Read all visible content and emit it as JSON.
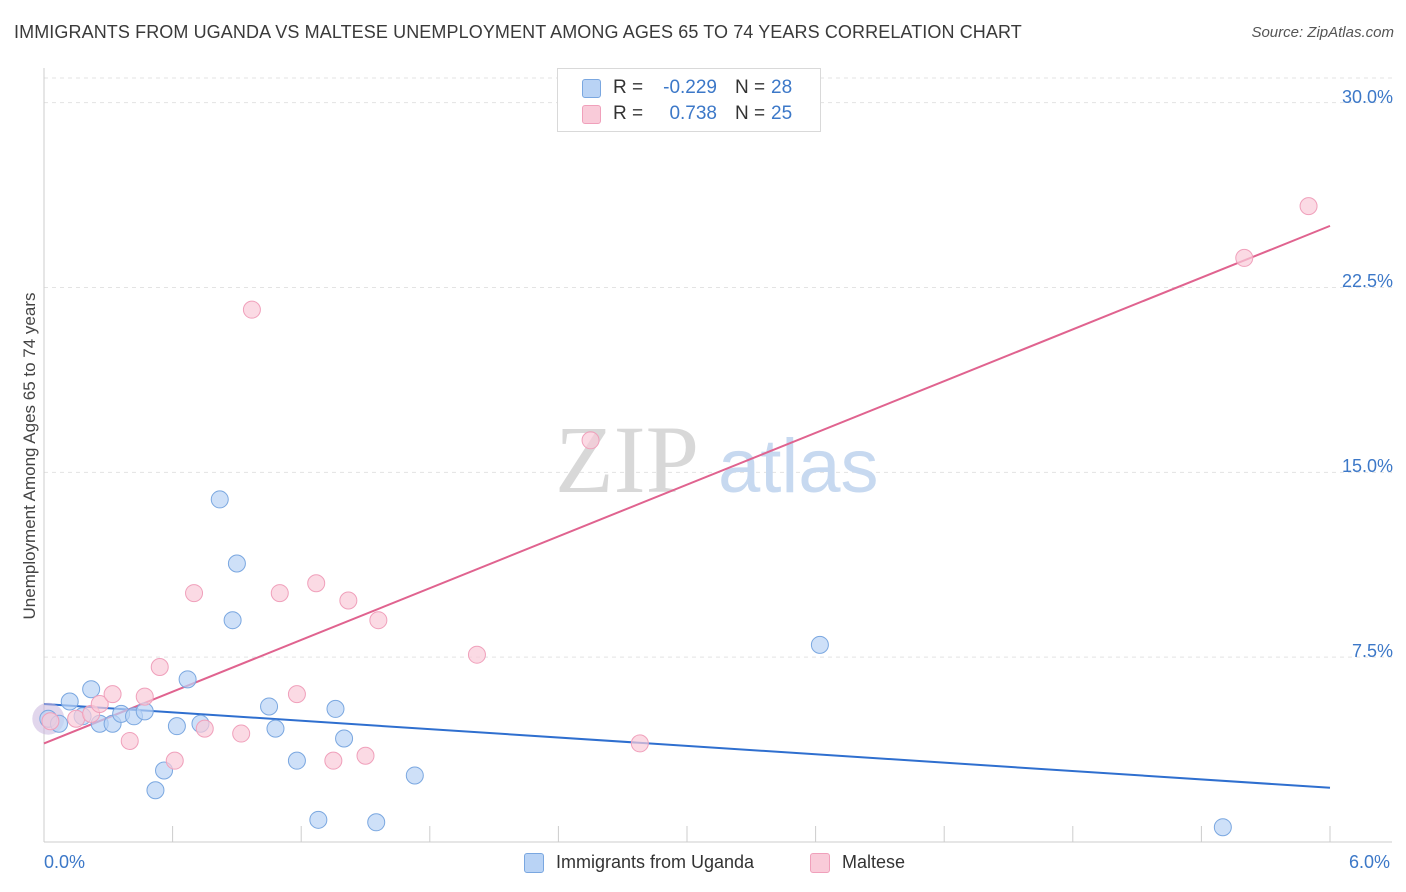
{
  "title": "IMMIGRANTS FROM UGANDA VS MALTESE UNEMPLOYMENT AMONG AGES 65 TO 74 YEARS CORRELATION CHART",
  "source": "Source: ZipAtlas.com",
  "watermark": {
    "zip": "ZIP",
    "atlas": "atlas"
  },
  "legend": {
    "rows": [
      {
        "r_label": "R =",
        "r_value": "-0.229",
        "n_label": "N =",
        "n_value": "28"
      },
      {
        "r_label": "R =",
        "r_value": "0.738",
        "n_label": "N =",
        "n_value": "25"
      }
    ]
  },
  "chart_data": {
    "type": "scatter",
    "xlabel": "",
    "ylabel": "Unemployment Among Ages 65 to 74 years",
    "xlim": [
      0,
      6.0
    ],
    "ylim": [
      0,
      31
    ],
    "x_tick_labels": [
      "0.0%",
      "6.0%"
    ],
    "y_ticks": [
      7.5,
      15.0,
      22.5,
      30.0
    ],
    "y_tick_labels": [
      "7.5%",
      "15.0%",
      "22.5%",
      "30.0%"
    ],
    "grid": true,
    "legend_position": "top-center",
    "series": [
      {
        "name": "Immigrants from Uganda",
        "color": "#7aa7e0",
        "fill": "#b9d3f5",
        "line_color": "#2f6fcf",
        "trend": [
          [
            0.0,
            5.6
          ],
          [
            6.0,
            2.2
          ]
        ],
        "points": [
          [
            0.02,
            5.0
          ],
          [
            0.07,
            4.8
          ],
          [
            0.12,
            5.7
          ],
          [
            0.18,
            5.1
          ],
          [
            0.22,
            6.2
          ],
          [
            0.26,
            4.8
          ],
          [
            0.32,
            4.8
          ],
          [
            0.36,
            5.2
          ],
          [
            0.42,
            5.1
          ],
          [
            0.47,
            5.3
          ],
          [
            0.52,
            2.1
          ],
          [
            0.56,
            2.9
          ],
          [
            0.62,
            4.7
          ],
          [
            0.67,
            6.6
          ],
          [
            0.73,
            4.8
          ],
          [
            0.82,
            13.9
          ],
          [
            0.88,
            9.0
          ],
          [
            0.9,
            11.3
          ],
          [
            1.05,
            5.5
          ],
          [
            1.08,
            4.6
          ],
          [
            1.18,
            3.3
          ],
          [
            1.28,
            0.9
          ],
          [
            1.36,
            5.4
          ],
          [
            1.4,
            4.2
          ],
          [
            1.55,
            0.8
          ],
          [
            1.73,
            2.7
          ],
          [
            3.62,
            8.0
          ],
          [
            5.5,
            0.6
          ]
        ]
      },
      {
        "name": "Maltese",
        "color": "#f0a0bb",
        "fill": "#f9cbd9",
        "line_color": "#e0638f",
        "trend": [
          [
            0.0,
            4.0
          ],
          [
            6.0,
            25.0
          ]
        ],
        "points": [
          [
            0.03,
            4.9
          ],
          [
            0.15,
            5.0
          ],
          [
            0.22,
            5.2
          ],
          [
            0.26,
            5.6
          ],
          [
            0.32,
            6.0
          ],
          [
            0.4,
            4.1
          ],
          [
            0.47,
            5.9
          ],
          [
            0.54,
            7.1
          ],
          [
            0.61,
            3.3
          ],
          [
            0.7,
            10.1
          ],
          [
            0.75,
            4.6
          ],
          [
            0.92,
            4.4
          ],
          [
            0.97,
            21.6
          ],
          [
            1.1,
            10.1
          ],
          [
            1.18,
            6.0
          ],
          [
            1.27,
            10.5
          ],
          [
            1.35,
            3.3
          ],
          [
            1.42,
            9.8
          ],
          [
            1.5,
            3.5
          ],
          [
            1.56,
            9.0
          ],
          [
            2.02,
            7.6
          ],
          [
            2.55,
            16.3
          ],
          [
            2.78,
            4.0
          ],
          [
            5.6,
            23.7
          ],
          [
            5.9,
            25.8
          ]
        ]
      }
    ]
  },
  "bottom_legend": [
    "Immigrants from Uganda",
    "Maltese"
  ]
}
